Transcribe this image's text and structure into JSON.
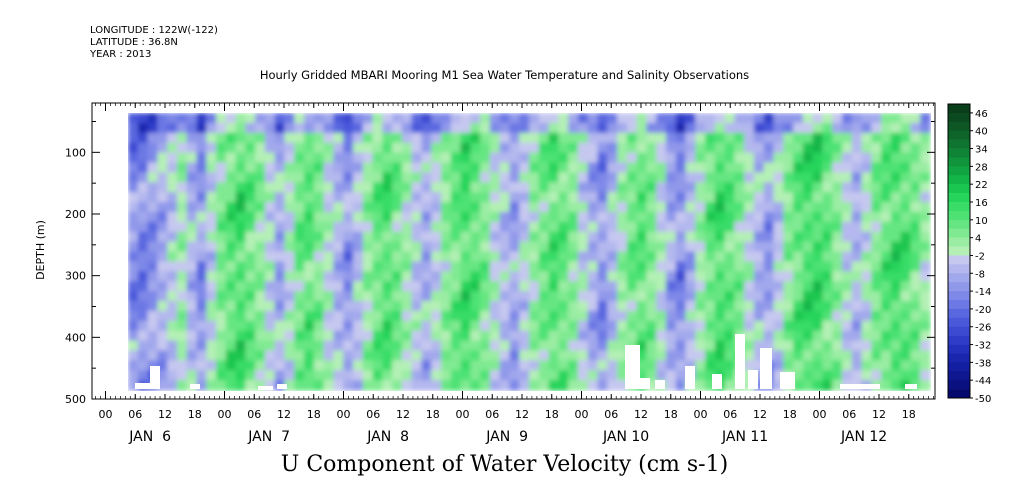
{
  "header": {
    "longitude": "LONGITUDE : 122W(-122)",
    "latitude": "LATITUDE : 36.8N",
    "year": "YEAR : 2013"
  },
  "chart_data": {
    "type": "heatmap",
    "title": "Hourly Gridded MBARI Mooring M1 Sea Water Temperature and Salinity Observations",
    "bottom_title": "U Component of Water Velocity (cm s-1)",
    "ylabel": "DEPTH (m)",
    "ylim": [
      500,
      20
    ],
    "y_ticks": [
      100,
      200,
      300,
      400,
      500
    ],
    "hour_ticks": [
      "00",
      "06",
      "12",
      "18",
      "00",
      "06",
      "12",
      "18",
      "00",
      "06",
      "12",
      "18",
      "00",
      "06",
      "12",
      "18",
      "00",
      "06",
      "12",
      "18",
      "00",
      "06",
      "12",
      "18",
      "00",
      "06",
      "12",
      "18"
    ],
    "day_labels": [
      "JAN  6",
      "JAN  7",
      "JAN  8",
      "JAN  9",
      "JAN 10",
      "JAN 11",
      "JAN 12"
    ],
    "colorbar": {
      "labels": [
        "46",
        "40",
        "34",
        "28",
        "22",
        "16",
        "10",
        "4",
        "-2",
        "-8",
        "-14",
        "-20",
        "-26",
        "-32",
        "-38",
        "-44",
        "-50"
      ],
      "levels": [
        49,
        46,
        43,
        40,
        37,
        34,
        31,
        28,
        25,
        22,
        19,
        16,
        13,
        10,
        7,
        4,
        1,
        -2,
        -5,
        -8,
        -11,
        -14,
        -17,
        -20,
        -23,
        -26,
        -29,
        -32,
        -35,
        -38,
        -41,
        -44,
        -47,
        -50
      ],
      "colors": [
        "#0a3d1a",
        "#0b4a1f",
        "#0c5724",
        "#0d652a",
        "#0e7430",
        "#0f8436",
        "#10943c",
        "#11a442",
        "#14b548",
        "#1bc650",
        "#26d45b",
        "#38dc67",
        "#4ee274",
        "#66e682",
        "#80ea92",
        "#9aeda3",
        "#b4f0b5",
        "#c6c8f0",
        "#b4b8ee",
        "#a2a8ec",
        "#9098ea",
        "#7e88e8",
        "#6c78e4",
        "#5a68e0",
        "#4a58da",
        "#3c4ad2",
        "#2e3cc8",
        "#2230bc",
        "#1a26ae",
        "#141ea0",
        "#0e1690",
        "#0a1080",
        "#060a6e"
      ]
    },
    "series_u_by_column": [
      -20,
      -22,
      -18,
      -12,
      -6,
      2,
      -10,
      -18,
      -4,
      8,
      14,
      18,
      12,
      6,
      -4,
      -12,
      -2,
      10,
      14,
      8,
      -2,
      -10,
      -18,
      -8,
      4,
      12,
      16,
      10,
      2,
      -6,
      -12,
      -4,
      6,
      12,
      18,
      14,
      8,
      -2,
      -8,
      -14,
      -6,
      4,
      10,
      16,
      12,
      6,
      -4,
      -12,
      -18,
      -10,
      2,
      10,
      14,
      8,
      -2,
      -14,
      -20,
      -10,
      2,
      12,
      18,
      14,
      8,
      -2,
      -10,
      -16,
      -6,
      6,
      14,
      18,
      20,
      14,
      6,
      -4,
      -10,
      -2,
      8,
      14,
      18,
      16,
      10,
      2
    ]
  }
}
